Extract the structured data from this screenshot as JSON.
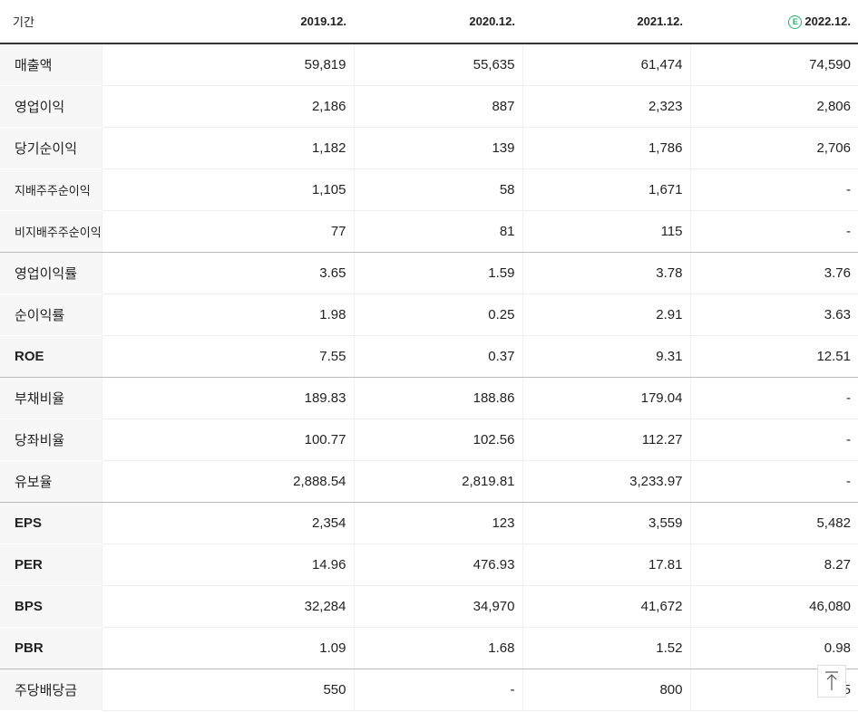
{
  "table": {
    "header": [
      "기간",
      "2019.12.",
      "2020.12.",
      "2021.12.",
      "2022.12."
    ],
    "estimate_mark": "E",
    "rows": [
      [
        "매출액",
        "59,819",
        "55,635",
        "61,474",
        "74,590"
      ],
      [
        "영업이익",
        "2,186",
        "887",
        "2,323",
        "2,806"
      ],
      [
        "당기순이익",
        "1,182",
        "139",
        "1,786",
        "2,706"
      ],
      [
        "지배주주순이익",
        "1,105",
        "58",
        "1,671",
        "-"
      ],
      [
        "비지배주주순이익",
        "77",
        "81",
        "115",
        "-"
      ],
      [
        "영업이익률",
        "3.65",
        "1.59",
        "3.78",
        "3.76"
      ],
      [
        "순이익률",
        "1.98",
        "0.25",
        "2.91",
        "3.63"
      ],
      [
        "ROE",
        "7.55",
        "0.37",
        "9.31",
        "12.51"
      ],
      [
        "부채비율",
        "189.83",
        "188.86",
        "179.04",
        "-"
      ],
      [
        "당좌비율",
        "100.77",
        "102.56",
        "112.27",
        "-"
      ],
      [
        "유보율",
        "2,888.54",
        "2,819.81",
        "3,233.97",
        "-"
      ],
      [
        "EPS",
        "2,354",
        "123",
        "3,559",
        "5,482"
      ],
      [
        "PER",
        "14.96",
        "476.93",
        "17.81",
        "8.27"
      ],
      [
        "BPS",
        "32,284",
        "34,970",
        "41,672",
        "46,080"
      ],
      [
        "PBR",
        "1.09",
        "1.68",
        "1.52",
        "0.98"
      ],
      [
        "주당배당금",
        "550",
        "-",
        "800",
        "5"
      ]
    ]
  }
}
